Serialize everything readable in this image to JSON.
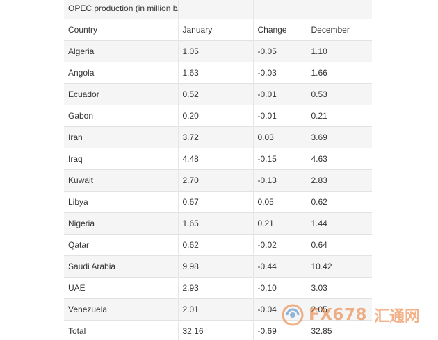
{
  "table": {
    "title": "OPEC production (in million b/d)",
    "headers": [
      "Country",
      "January",
      "Change",
      "December"
    ],
    "rows": [
      {
        "country": "Algeria",
        "january": "1.05",
        "change": "-0.05",
        "december": "1.10"
      },
      {
        "country": "Angola",
        "january": "1.63",
        "change": "-0.03",
        "december": "1.66"
      },
      {
        "country": "Ecuador",
        "january": "0.52",
        "change": "-0.01",
        "december": "0.53"
      },
      {
        "country": "Gabon",
        "january": "0.20",
        "change": "-0.01",
        "december": "0.21"
      },
      {
        "country": "Iran",
        "january": "3.72",
        "change": "0.03",
        "december": "3.69"
      },
      {
        "country": "Iraq",
        "january": "4.48",
        "change": "-0.15",
        "december": "4.63"
      },
      {
        "country": "Kuwait",
        "january": "2.70",
        "change": "-0.13",
        "december": "2.83"
      },
      {
        "country": "Libya",
        "january": "0.67",
        "change": "0.05",
        "december": "0.62"
      },
      {
        "country": "Nigeria",
        "january": "1.65",
        "change": "0.21",
        "december": "1.44"
      },
      {
        "country": "Qatar",
        "january": "0.62",
        "change": "-0.02",
        "december": "0.64"
      },
      {
        "country": "Saudi Arabia",
        "january": "9.98",
        "change": "-0.44",
        "december": "10.42"
      },
      {
        "country": "UAE",
        "january": "2.93",
        "change": "-0.10",
        "december": "3.03"
      },
      {
        "country": "Venezuela",
        "january": "2.01",
        "change": "-0.04",
        "december": "2.05"
      },
      {
        "country": "Total",
        "january": "32.16",
        "change": "-0.69",
        "december": "32.85"
      }
    ]
  },
  "watermark": {
    "brand": "FX678",
    "chinese": "汇通网",
    "icon": "fx678-logo-icon"
  },
  "colors": {
    "row_stripe": "#f5f5f5",
    "grid": "#e2e2e2",
    "text": "#333333",
    "watermark": "#e8732a"
  }
}
